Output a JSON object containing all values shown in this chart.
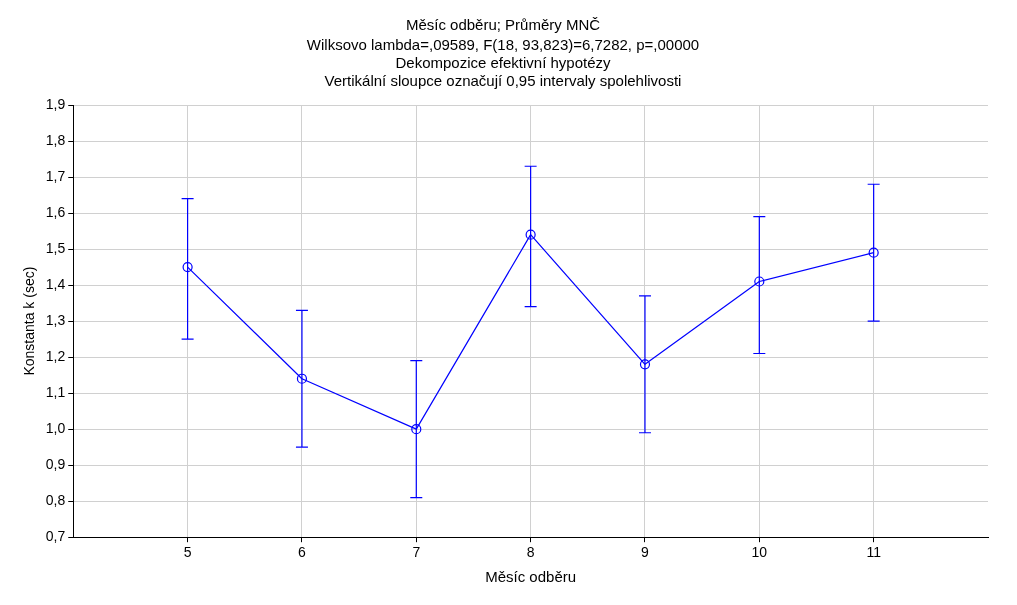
{
  "chart_data": {
    "type": "line",
    "title": "Měsíc odběru; Průměry MNČ",
    "subtitle": "Wilksovo lambda=,09589, F(18, 93,823)=6,7282, p=,00000\nDekompozice efektivní hypotézy\nVertikální sloupce označují 0,95 intervaly spolehlivosti",
    "xlabel": "Měsíc odběru",
    "ylabel": "Konstanta k (sec)",
    "x": [
      5,
      6,
      7,
      8,
      9,
      10,
      11
    ],
    "series": [
      {
        "color": "#0000ff",
        "values": [
          1.45,
          1.14,
          1.0,
          1.54,
          1.18,
          1.41,
          1.49
        ],
        "errors": [
          [
            1.25,
            1.64
          ],
          [
            0.95,
            1.33
          ],
          [
            0.81,
            1.19
          ],
          [
            1.34,
            1.73
          ],
          [
            0.99,
            1.37
          ],
          [
            1.21,
            1.59
          ],
          [
            1.3,
            1.68
          ]
        ]
      }
    ],
    "xlim": [
      4,
      12
    ],
    "xticks": [
      5,
      6,
      7,
      8,
      9,
      10,
      11
    ],
    "ylim": [
      0.7,
      1.9
    ],
    "yticks": [
      {
        "value": 0.7,
        "label": "0,7"
      },
      {
        "value": 0.8,
        "label": "0,8"
      },
      {
        "value": 0.9,
        "label": "0,9"
      },
      {
        "value": 1.0,
        "label": "1,0"
      },
      {
        "value": 1.1,
        "label": "1,1"
      },
      {
        "value": 1.2,
        "label": "1,2"
      },
      {
        "value": 1.3,
        "label": "1,3"
      },
      {
        "value": 1.4,
        "label": "1,4"
      },
      {
        "value": 1.5,
        "label": "1,5"
      },
      {
        "value": 1.6,
        "label": "1,6"
      },
      {
        "value": 1.7,
        "label": "1,7"
      },
      {
        "value": 1.8,
        "label": "1,8"
      },
      {
        "value": 1.9,
        "label": "1,9"
      }
    ],
    "grid": true,
    "marker": "circle",
    "line_style": "solid",
    "legend": false
  }
}
